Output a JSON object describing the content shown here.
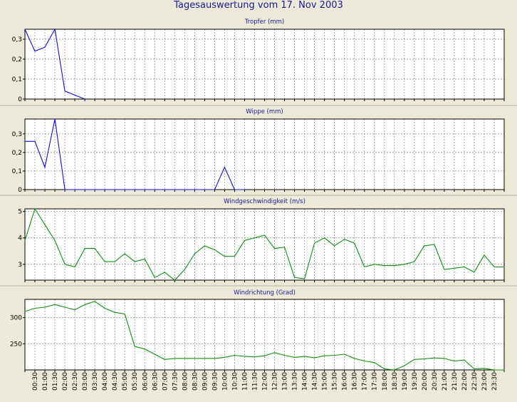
{
  "page": {
    "title": "Tagesauswertung vom 17. Nov 2003"
  },
  "colors": {
    "background": "#ece9d8",
    "plot_bg": "#ffffff",
    "grid": "#7f7f7f",
    "title": "#1a1a9a",
    "blue_series": "#1010d0",
    "green_series": "#109010"
  },
  "x_axis": {
    "labels": [
      "00:30",
      "01:00",
      "01:30",
      "02:00",
      "02:30",
      "03:00",
      "03:30",
      "04:00",
      "04:30",
      "05:00",
      "05:30",
      "06:00",
      "06:30",
      "07:00",
      "07:30",
      "08:00",
      "08:30",
      "09:00",
      "09:30",
      "10:00",
      "10:30",
      "11:00",
      "11:30",
      "12:00",
      "12:30",
      "13:00",
      "13:30",
      "14:00",
      "14:30",
      "15:00",
      "15:30",
      "16:00",
      "16:30",
      "17:00",
      "17:30",
      "18:00",
      "18:30",
      "19:00",
      "19:30",
      "20:00",
      "20:30",
      "21:00",
      "21:30",
      "22:00",
      "22:30",
      "23:00",
      "23:30"
    ]
  },
  "chart_data": [
    {
      "type": "line",
      "title": "Tropfer (mm)",
      "color": "#1010d0",
      "ylim": [
        0,
        0.35
      ],
      "yticks": [
        0,
        0.1,
        0.2,
        0.3
      ],
      "ytick_labels": [
        "0",
        "0,1",
        "0,2",
        "0,3"
      ],
      "x": [
        "00:00",
        "00:30",
        "01:00",
        "01:30",
        "02:00",
        "02:30",
        "03:00"
      ],
      "values": [
        0.35,
        0.24,
        0.26,
        0.35,
        0.04,
        0.02,
        0.0
      ]
    },
    {
      "type": "line",
      "title": "Wippe (mm)",
      "color": "#1010d0",
      "ylim": [
        0,
        0.38
      ],
      "yticks": [
        0,
        0.1,
        0.2,
        0.3
      ],
      "ytick_labels": [
        "0",
        "0,1",
        "0,2",
        "0,3"
      ],
      "x": [
        "00:00",
        "00:30",
        "01:00",
        "01:30",
        "02:00",
        "02:30",
        "03:00",
        "03:30",
        "04:00",
        "04:30",
        "05:00",
        "05:30",
        "06:00",
        "06:30",
        "07:00",
        "07:30",
        "08:00",
        "08:30",
        "09:00",
        "09:30",
        "10:00",
        "10:30",
        "11:00"
      ],
      "values": [
        0.26,
        0.26,
        0.12,
        0.38,
        0,
        0,
        0,
        0,
        0,
        0,
        0,
        0,
        0,
        0,
        0,
        0,
        0,
        0,
        0,
        0,
        0.12,
        0,
        0
      ]
    },
    {
      "type": "line",
      "title": "Windgeschwindigkeit (m/s)",
      "color": "#109010",
      "ylim": [
        2.4,
        5.1
      ],
      "yticks": [
        3,
        4,
        5
      ],
      "ytick_labels": [
        "3",
        "4",
        "5"
      ],
      "x": [
        "00:00",
        "00:30",
        "01:00",
        "01:30",
        "02:00",
        "02:30",
        "03:00",
        "03:30",
        "04:00",
        "04:30",
        "05:00",
        "05:30",
        "06:00",
        "06:30",
        "07:00",
        "07:30",
        "08:00",
        "08:30",
        "09:00",
        "09:30",
        "10:00",
        "10:30",
        "11:00",
        "11:30",
        "12:00",
        "12:30",
        "13:00",
        "13:30",
        "14:00",
        "14:30",
        "15:00",
        "15:30",
        "16:00",
        "16:30",
        "17:00",
        "17:30",
        "18:00",
        "18:30",
        "19:00",
        "19:30",
        "20:00",
        "20:30",
        "21:00",
        "21:30",
        "22:00",
        "22:30",
        "23:00",
        "23:30",
        "24:00"
      ],
      "values": [
        3.9,
        5.1,
        4.5,
        3.9,
        3.0,
        2.9,
        3.6,
        3.6,
        3.1,
        3.1,
        3.4,
        3.1,
        3.2,
        2.5,
        2.7,
        2.4,
        2.8,
        3.4,
        3.7,
        3.55,
        3.3,
        3.3,
        3.9,
        4.0,
        4.1,
        3.6,
        3.65,
        2.5,
        2.45,
        3.8,
        4.0,
        3.7,
        3.95,
        3.8,
        2.9,
        3.0,
        2.95,
        2.95,
        3.0,
        3.1,
        3.7,
        3.75,
        2.8,
        2.85,
        2.9,
        2.7,
        3.35,
        2.9,
        2.9
      ]
    },
    {
      "type": "line",
      "title": "Windrichtung (Grad)",
      "color": "#109010",
      "ylim": [
        200,
        335
      ],
      "yticks": [
        250,
        300
      ],
      "ytick_labels": [
        "250",
        "300"
      ],
      "x": [
        "00:00",
        "00:30",
        "01:00",
        "01:30",
        "02:00",
        "02:30",
        "03:00",
        "03:30",
        "04:00",
        "04:30",
        "05:00",
        "05:30",
        "06:00",
        "06:30",
        "07:00",
        "07:30",
        "08:00",
        "08:30",
        "09:00",
        "09:30",
        "10:00",
        "10:30",
        "11:00",
        "11:30",
        "12:00",
        "12:30",
        "13:00",
        "13:30",
        "14:00",
        "14:30",
        "15:00",
        "15:30",
        "16:00",
        "16:30",
        "17:00",
        "17:30",
        "18:00",
        "18:30",
        "19:00",
        "19:30",
        "20:00",
        "20:30",
        "21:00",
        "21:30",
        "22:00",
        "22:30",
        "23:00",
        "23:30",
        "24:00"
      ],
      "values": [
        312,
        318,
        320,
        325,
        320,
        315,
        325,
        331,
        318,
        310,
        307,
        245,
        240,
        230,
        220,
        222,
        222,
        222,
        222,
        222,
        224,
        228,
        226,
        225,
        227,
        233,
        228,
        224,
        226,
        223,
        227,
        228,
        230,
        222,
        217,
        214,
        202,
        200,
        208,
        220,
        221,
        223,
        222,
        217,
        219,
        202,
        203,
        200,
        200
      ]
    }
  ]
}
